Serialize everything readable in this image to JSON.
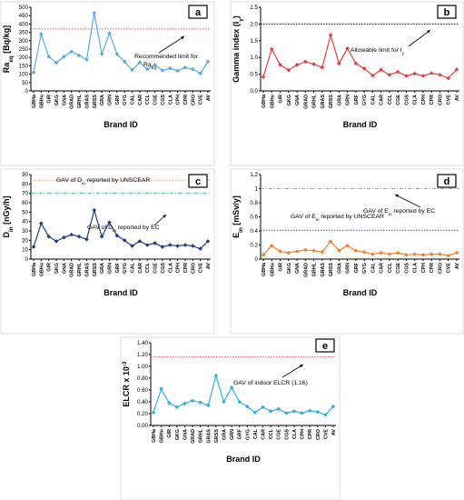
{
  "x_categories": [
    "GBHa",
    "GBHu",
    "GIR",
    "GKG",
    "GNA",
    "GRAD",
    "GRHL",
    "GRAS",
    "GRSS",
    "GRA",
    "GRN",
    "GRF",
    "GYG",
    "CAL",
    "CAR",
    "CCL",
    "CGE",
    "CGS",
    "CLA",
    "CPH",
    "CPR",
    "CRO",
    "CVE",
    "AV"
  ],
  "xlabel": "Brand ID",
  "chart_data": [
    {
      "type": "line",
      "panel": "a",
      "ylabel": "Ra",
      "ylabel_sub": "eq",
      "ylabel_unit": " [Bq/kg]",
      "ylim": [
        0,
        500
      ],
      "yticks": [
        "0",
        "50",
        "100",
        "150",
        "200",
        "250",
        "300",
        "350",
        "400",
        "450",
        "500"
      ],
      "yticks_values": [
        0,
        50,
        100,
        150,
        200,
        250,
        300,
        350,
        400,
        450,
        500
      ],
      "line_color": "#5aa9dc",
      "values": [
        110,
        340,
        205,
        168,
        205,
        235,
        212,
        187,
        465,
        220,
        345,
        220,
        175,
        125,
        170,
        130,
        155,
        122,
        135,
        120,
        140,
        130,
        105,
        175
      ],
      "reference": {
        "value": 370,
        "color": "#e05050",
        "label": "Recommended limit for",
        "label2": "Ra",
        "label2_sub": "eq"
      }
    },
    {
      "type": "line",
      "panel": "b",
      "ylabel": "Gamma index (I",
      "ylabel_sub": "γ",
      "ylabel_unit": ")",
      "ylim": [
        0,
        2.5
      ],
      "yticks": [
        "0.0",
        "0.5",
        "1.0",
        "1.5",
        "2.0",
        "2.5"
      ],
      "yticks_values": [
        0,
        0.5,
        1,
        1.5,
        2,
        2.5
      ],
      "line_color": "#e04040",
      "values": [
        0.42,
        1.25,
        0.78,
        0.62,
        0.78,
        0.87,
        0.8,
        0.7,
        1.67,
        0.82,
        1.27,
        0.82,
        0.67,
        0.46,
        0.63,
        0.48,
        0.57,
        0.45,
        0.52,
        0.45,
        0.53,
        0.48,
        0.38,
        0.64
      ],
      "reference": {
        "value": 2.0,
        "color": "#000000",
        "label": "Allowable limit for I",
        "label_sub": "γ"
      }
    },
    {
      "type": "line",
      "panel": "c",
      "ylabel": "D",
      "ylabel_sub": "in",
      "ylabel_unit": " [nGy/h]",
      "ylim": [
        0,
        90
      ],
      "yticks": [
        "0",
        "10",
        "20",
        "30",
        "40",
        "50",
        "60",
        "70",
        "80",
        "90"
      ],
      "yticks_values": [
        0,
        10,
        20,
        30,
        40,
        50,
        60,
        70,
        80,
        90
      ],
      "line_color": "#1f3f78",
      "values": [
        13,
        38,
        24,
        19,
        23,
        26,
        24,
        21,
        52,
        24,
        39,
        25,
        20,
        14,
        19,
        15,
        17,
        13,
        15,
        14,
        15,
        14,
        11,
        19
      ],
      "reference": {
        "value": 84,
        "color": "#d8a090",
        "label": "GAV of D",
        "label_sub": "in",
        "label_tail": " reported by UNSCEAR"
      },
      "reference2": {
        "value": 70,
        "color": "#40c0a0",
        "label": "GAV of D",
        "label_sub": "in",
        "label_tail": " reported by EC"
      }
    },
    {
      "type": "line",
      "panel": "d",
      "ylabel": "E",
      "ylabel_sub": "in",
      "ylabel_unit": " [mSv/y]",
      "ylim": [
        0,
        1.2
      ],
      "yticks": [
        "0",
        "0.2",
        "0.4",
        "0.6",
        "0.8",
        "1",
        "1.2"
      ],
      "yticks_values": [
        0,
        0.2,
        0.4,
        0.6,
        0.8,
        1,
        1.2
      ],
      "line_color": "#f08030",
      "values": [
        0.06,
        0.19,
        0.11,
        0.09,
        0.11,
        0.13,
        0.12,
        0.1,
        0.25,
        0.12,
        0.19,
        0.12,
        0.1,
        0.07,
        0.09,
        0.07,
        0.09,
        0.06,
        0.07,
        0.06,
        0.07,
        0.07,
        0.05,
        0.09
      ],
      "reference": {
        "value": 1.0,
        "color": "#40c8b0",
        "label": "GAV of E",
        "label_sub": "in",
        "label_tail": " reported by EC"
      },
      "reference2": {
        "value": 0.41,
        "color": "#3060b0",
        "label": "GAV of E",
        "label_sub": "in",
        "label_tail": " reported by UNSCEAR"
      }
    },
    {
      "type": "line",
      "panel": "e",
      "ylabel": "ELCR x 10",
      "ylabel_sup": "-3",
      "ylabel_unit": "",
      "ylim": [
        0,
        1.4
      ],
      "yticks": [
        "0.00",
        "0.20",
        "0.40",
        "0.60",
        "0.80",
        "1.00",
        "1.20",
        "1.40"
      ],
      "yticks_values": [
        0,
        0.2,
        0.4,
        0.6,
        0.8,
        1.0,
        1.2,
        1.4
      ],
      "line_color": "#30b0e0",
      "values": [
        0.22,
        0.62,
        0.38,
        0.31,
        0.37,
        0.42,
        0.39,
        0.34,
        0.84,
        0.4,
        0.64,
        0.4,
        0.32,
        0.22,
        0.31,
        0.24,
        0.28,
        0.21,
        0.24,
        0.21,
        0.25,
        0.23,
        0.18,
        0.32
      ],
      "reference": {
        "value": 1.16,
        "color": "#e05050",
        "label": "GAV of indoor ELCR (1.16)"
      }
    }
  ]
}
